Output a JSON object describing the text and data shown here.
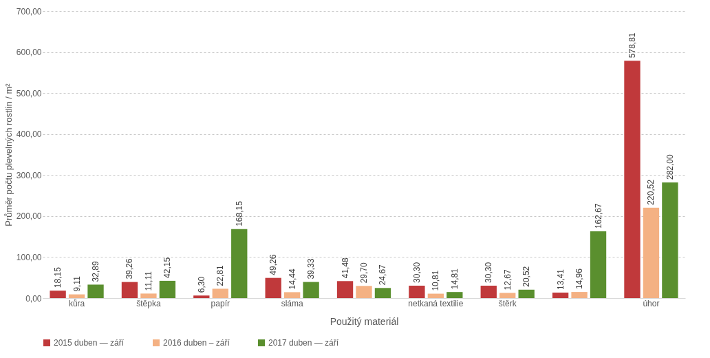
{
  "chart_data": {
    "type": "bar",
    "xlabel": "Použitý materiál",
    "ylabel": "Průměr počtu plevelných rostlin / m²",
    "categories": [
      "kůra",
      "štěpka",
      "papír",
      "sláma",
      null,
      "netkaná textilie",
      "štěrk",
      null,
      "úhor"
    ],
    "series": [
      {
        "name": "2015 duben — září",
        "color": "#c0393b",
        "values": [
          18.15,
          39.26,
          6.3,
          49.26,
          41.48,
          30.3,
          30.3,
          13.41,
          578.81
        ],
        "value_labels": [
          "18,15",
          "39,26",
          "6,30",
          "49,26",
          "41,48",
          "30,30",
          "30,30",
          "13,41",
          "578,81"
        ]
      },
      {
        "name": "2016 duben – září",
        "color": "#f4b183",
        "values": [
          9.11,
          11.11,
          22.81,
          14.44,
          29.7,
          10.81,
          12.67,
          14.96,
          220.52
        ],
        "value_labels": [
          "9,11",
          "11,11",
          "22,81",
          "14,44",
          "29,70",
          "10,81",
          "12,67",
          "14,96",
          "220,52"
        ]
      },
      {
        "name": "2017 duben — září",
        "color": "#5a8f2e",
        "values": [
          32.89,
          42.15,
          168.15,
          39.33,
          24.67,
          14.81,
          20.52,
          162.67,
          282.0
        ],
        "value_labels": [
          "32,89",
          "42,15",
          "168,15",
          "39,33",
          "24,67",
          "14,81",
          "20,52",
          "162,67",
          "282,00"
        ]
      }
    ],
    "ylim": [
      0,
      700
    ],
    "yticks": [
      {
        "value": 0,
        "label": "0,00"
      },
      {
        "value": 100,
        "label": "100,00"
      },
      {
        "value": 200,
        "label": "200,00"
      },
      {
        "value": 300,
        "label": "300,00"
      },
      {
        "value": 400,
        "label": "400,00"
      },
      {
        "value": 500,
        "label": "500,00"
      },
      {
        "value": 600,
        "label": "600,00"
      },
      {
        "value": 700,
        "label": "700,00"
      }
    ],
    "grid": "y",
    "legend": "bottom"
  }
}
